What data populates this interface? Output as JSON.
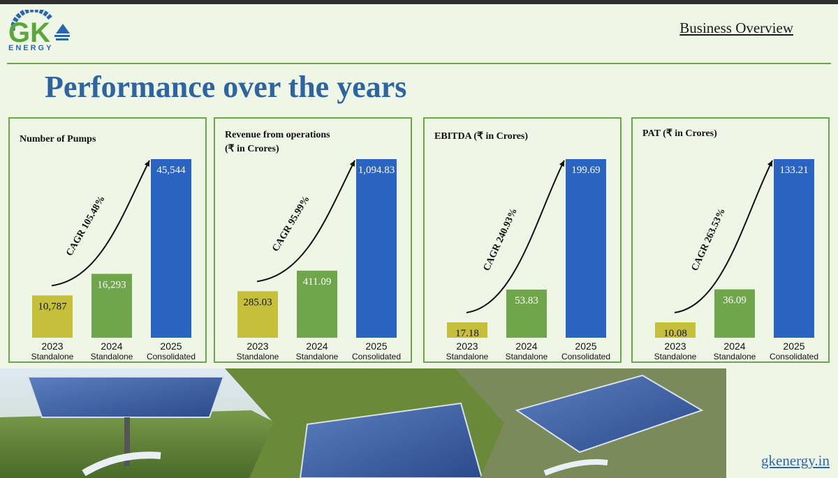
{
  "header": {
    "logo_text": "GK",
    "logo_subtext": "ENERGY",
    "section_link": "Business Overview"
  },
  "title": "Performance over the years",
  "footer": {
    "website": "gkenergy.in"
  },
  "colors": {
    "title": "#2e64a0",
    "border": "#6aa74a",
    "bar_2023": "#c6bf3c",
    "bar_2024": "#6fa64b",
    "bar_2025": "#2b63c0"
  },
  "chart_data": [
    {
      "type": "bar",
      "title": "Number of Pumps",
      "categories": [
        "2023",
        "2024",
        "2025"
      ],
      "sublabels": [
        "Standalone",
        "Standalone",
        "Consolidated"
      ],
      "values": [
        10787,
        16293,
        45544
      ],
      "value_labels": [
        "10,787",
        "16,293",
        "45,544"
      ],
      "cagr": "CAGR 105.48%"
    },
    {
      "type": "bar",
      "title": "Revenue from operations (₹ in Crores)",
      "title_lines": [
        "Revenue from operations",
        "(₹ in Crores)"
      ],
      "categories": [
        "2023",
        "2024",
        "2025"
      ],
      "sublabels": [
        "Standalone",
        "Standalone",
        "Consolidated"
      ],
      "values": [
        285.03,
        411.09,
        1094.83
      ],
      "value_labels": [
        "285.03",
        "411.09",
        "1,094.83"
      ],
      "cagr": "CAGR 95.99%"
    },
    {
      "type": "bar",
      "title": "EBITDA (₹ in Crores)",
      "categories": [
        "2023",
        "2024",
        "2025"
      ],
      "sublabels": [
        "Standalone",
        "Standalone",
        "Consolidated"
      ],
      "values": [
        17.18,
        53.83,
        199.69
      ],
      "value_labels": [
        "17.18",
        "53.83",
        "199.69"
      ],
      "cagr": "CAGR 240.93%"
    },
    {
      "type": "bar",
      "title": "PAT (₹ in Crores)",
      "categories": [
        "2023",
        "2024",
        "2025"
      ],
      "sublabels": [
        "Standalone",
        "Standalone",
        "Consolidated"
      ],
      "values": [
        10.08,
        36.09,
        133.21
      ],
      "value_labels": [
        "10.08",
        "36.09",
        "133.21"
      ],
      "cagr": "CAGR 263.53%"
    }
  ]
}
